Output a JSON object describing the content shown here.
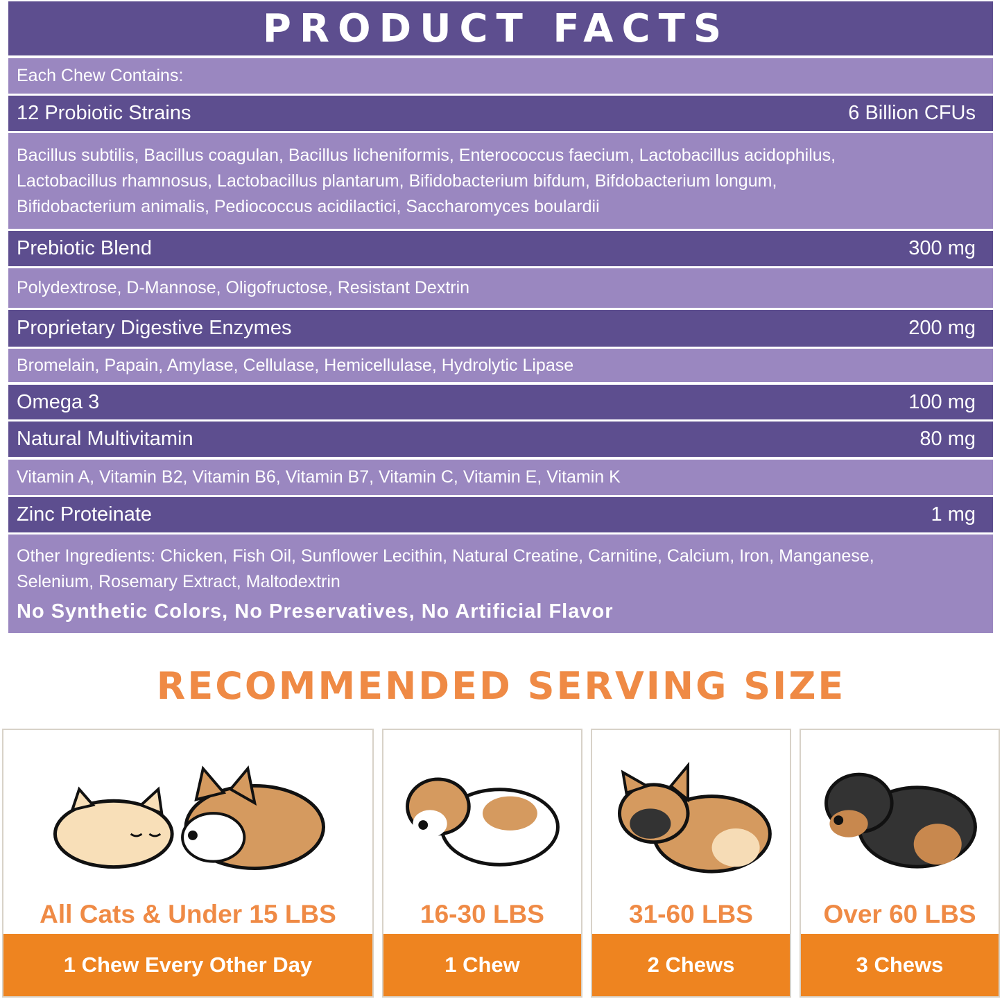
{
  "product_facts": {
    "title": "PRODUCT FACTS",
    "each_chew": "Each Chew Contains:",
    "rows": [
      {
        "name": "12 Probiotic Strains",
        "amount": "6 Billion CFUs",
        "details": [
          "Bacillus subtilis, Bacillus coagulan, Bacillus licheniformis, Enterococcus faecium, Lactobacillus acidophilus,",
          "Lactobacillus rhamnosus, Lactobacillus plantarum, Bifidobacterium bifdum, Bifdobacterium longum,",
          "Bifidobacterium animalis, Pediococcus acidilactici, Saccharomyces boulardii"
        ]
      },
      {
        "name": "Prebiotic Blend",
        "amount": "300 mg",
        "details": [
          "Polydextrose, D-Mannose, Oligofructose, Resistant Dextrin"
        ]
      },
      {
        "name": "Proprietary Digestive Enzymes",
        "amount": "200 mg",
        "details": [
          "Bromelain, Papain, Amylase, Cellulase, Hemicellulase, Hydrolytic Lipase"
        ]
      },
      {
        "name": "Omega 3",
        "amount": "100 mg"
      },
      {
        "name": "Natural Multivitamin",
        "amount": "80 mg",
        "details": [
          "Vitamin A, Vitamin B2, Vitamin B6, Vitamin B7, Vitamin C, Vitamin E, Vitamin K"
        ]
      },
      {
        "name": "Zinc Proteinate",
        "amount": "1 mg"
      }
    ],
    "other_ingredients": [
      "Other Ingredients: Chicken, Fish Oil, Sunflower Lecithin, Natural Creatine, Carnitine, Calcium, Iron, Manganese,",
      "Selenium, Rosemary Extract, Maltodextrin"
    ],
    "no_additives": "No Synthetic Colors, No Preservatives, No Artificial Flavor"
  },
  "serving": {
    "title": "RECOMMENDED SERVING SIZE",
    "cards": [
      {
        "weight": "All Cats & Under 15 LBS",
        "dose": "1 Chew Every Other Day",
        "icon": "cat-and-corgi-icon"
      },
      {
        "weight": "16-30 LBS",
        "dose": "1 Chew",
        "icon": "beagle-icon"
      },
      {
        "weight": "31-60 LBS",
        "dose": "2 Chews",
        "icon": "bulldog-icon"
      },
      {
        "weight": "Over 60 LBS",
        "dose": "3 Chews",
        "icon": "rottweiler-icon"
      }
    ]
  },
  "colors": {
    "dark_purple": "#5d4e8f",
    "light_purple": "#9a87c0",
    "orange": "#ee8420"
  }
}
